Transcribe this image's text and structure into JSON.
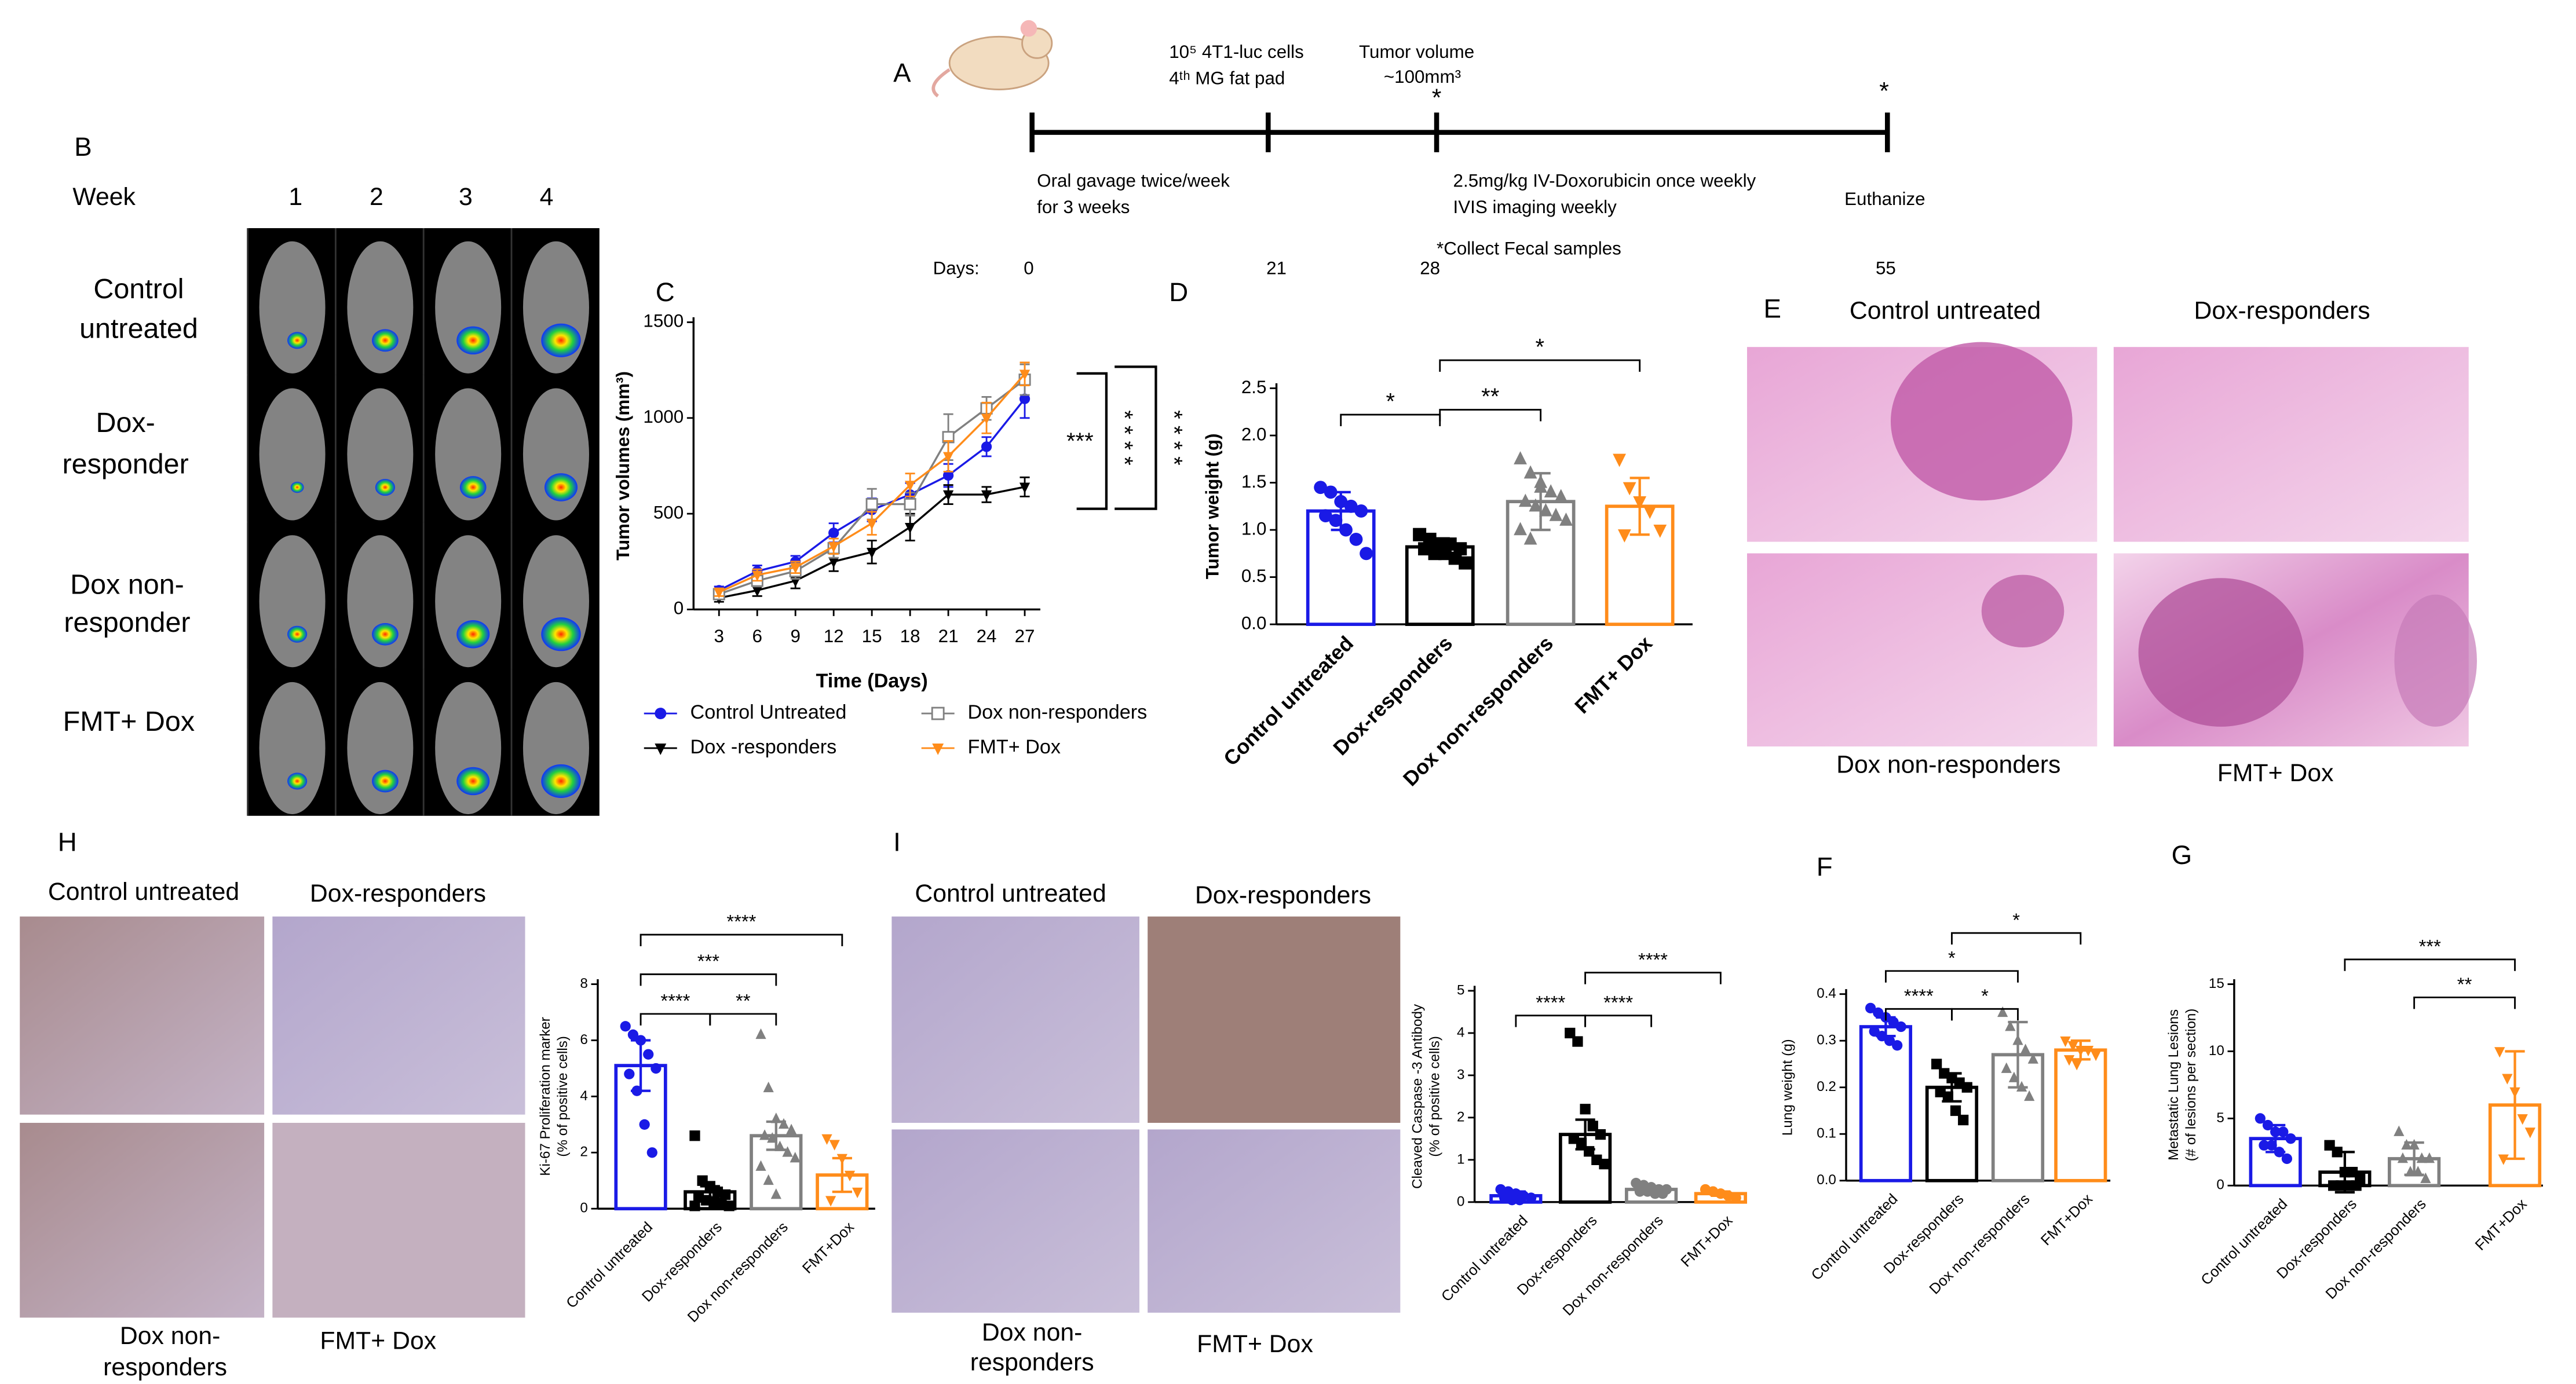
{
  "panel_labels": [
    "A",
    "B",
    "C",
    "D",
    "E",
    "F",
    "G",
    "H",
    "I"
  ],
  "timeline": {
    "cells": [
      "10⁵ 4T1-luc cells",
      "4ᵗʰ MG fat pad"
    ],
    "tumor": [
      "Tumor volume",
      "~100mm³"
    ],
    "gavage": [
      "Oral gavage twice/week",
      "for 3 weeks"
    ],
    "dox": [
      "2.5mg/kg IV-Doxorubicin once weekly",
      "IVIS imaging weekly"
    ],
    "euthanize": "Euthanize",
    "fecal": "*Collect Fecal samples",
    "star": "*",
    "days_label": "Days:",
    "days": [
      "0",
      "21",
      "28",
      "55"
    ]
  },
  "imaging": {
    "week_label": "Week",
    "weeks": [
      "1",
      "2",
      "3",
      "4"
    ],
    "rows": [
      [
        "Control",
        "untreated"
      ],
      [
        "Dox-",
        "responder"
      ],
      [
        "Dox non-",
        "responder"
      ],
      [
        "FMT+ Dox"
      ]
    ]
  },
  "histology_E": {
    "labels": [
      "Control untreated",
      "Dox-responders",
      "Dox non-responders",
      "FMT+ Dox"
    ]
  },
  "histology_H": {
    "labels": [
      "Control untreated",
      "Dox-responders",
      [
        "Dox non-",
        "responders"
      ],
      "FMT+ Dox"
    ]
  },
  "histology_I": {
    "labels": [
      "Control untreated",
      "Dox-responders",
      [
        "Dox non-",
        "responders"
      ],
      "FMT+ Dox"
    ]
  },
  "chart_data": [
    {
      "type": "line",
      "xlabel": "Time (Days)",
      "ylabel": [
        "Tumor volumes (mm³)"
      ],
      "x": [
        3,
        6,
        9,
        12,
        15,
        18,
        21,
        24,
        27
      ],
      "xlim": [
        1,
        29
      ],
      "xticks": [
        3,
        6,
        9,
        12,
        15,
        18,
        21,
        24,
        27
      ],
      "ylim": [
        0,
        1500
      ],
      "yticks": [
        0,
        500,
        1000,
        1500
      ],
      "legend": "bottom",
      "series": [
        {
          "name": "Control Untreated",
          "color": "#1a1ae6",
          "marker": "circle",
          "values": [
            100,
            200,
            250,
            400,
            520,
            600,
            700,
            850,
            1100
          ],
          "errors": [
            20,
            30,
            30,
            50,
            60,
            60,
            60,
            50,
            100
          ]
        },
        {
          "name": "Dox -responders",
          "color": "#000000",
          "marker": "triangle-down",
          "values": [
            60,
            100,
            150,
            250,
            300,
            430,
            600,
            600,
            640
          ],
          "errors": [
            20,
            30,
            40,
            50,
            60,
            70,
            50,
            40,
            50
          ]
        },
        {
          "name": "Dox non-responders",
          "color": "#808080",
          "marker": "square-open",
          "values": [
            80,
            150,
            200,
            320,
            550,
            550,
            900,
            1050,
            1200
          ],
          "errors": [
            20,
            30,
            40,
            50,
            80,
            60,
            120,
            60,
            80
          ]
        },
        {
          "name": "FMT+ Dox",
          "color": "#ff8c1a",
          "marker": "triangle-down",
          "values": [
            90,
            180,
            220,
            330,
            450,
            650,
            800,
            1000,
            1230
          ],
          "errors": [
            20,
            30,
            30,
            40,
            60,
            60,
            80,
            80,
            60
          ]
        }
      ],
      "annotations": [
        {
          "text": "***"
        },
        {
          "text": "* * * *"
        },
        {
          "text": "* * * *"
        }
      ]
    },
    {
      "type": "bar",
      "ylabel": [
        "Tumor weight (g)"
      ],
      "categories": [
        "Control untreated",
        "Dox-responders",
        "Dox non-responders",
        "FMT+ Dox"
      ],
      "values": [
        1.2,
        0.82,
        1.3,
        1.25
      ],
      "errors": [
        0.2,
        0.09,
        0.3,
        0.3
      ],
      "points": [
        [
          1.45,
          1.4,
          1.3,
          1.25,
          1.2,
          1.15,
          1.1,
          1.0,
          0.9,
          0.75
        ],
        [
          0.95,
          0.9,
          0.85,
          0.85,
          0.8,
          0.8,
          0.75,
          0.75,
          0.7,
          0.65,
          0.95
        ],
        [
          1.75,
          1.6,
          1.5,
          1.4,
          1.35,
          1.3,
          1.25,
          1.2,
          1.15,
          1.1,
          1.0,
          0.9,
          1.45
        ],
        [
          1.75,
          1.45,
          1.3,
          1.2,
          1.0,
          0.95
        ]
      ],
      "colors": [
        "#1a1ae6",
        "#000000",
        "#808080",
        "#ff8c1a"
      ],
      "markers": [
        "circle",
        "square",
        "triangle",
        "triangle-down"
      ],
      "ylim": [
        0,
        2.5
      ],
      "yticks": [
        {
          "value": 0,
          "label": "0.0"
        },
        0.5,
        {
          "value": 1,
          "label": "1.0"
        },
        1.5,
        {
          "value": 2,
          "label": "2.0"
        },
        2.5
      ],
      "annotations": [
        {
          "text": "*",
          "from": 0,
          "to": 1
        },
        {
          "text": "**",
          "from": 1,
          "to": 2
        },
        {
          "text": "*",
          "from": 1,
          "to": 3
        }
      ]
    },
    {
      "type": "bar",
      "ylabel": [
        "Ki-67 Proliferation marker",
        "(% of positive cells)"
      ],
      "categories": [
        "Control untreated",
        "Dox-responders",
        "Dox non-responders",
        "FMT+Dox"
      ],
      "values": [
        5.1,
        0.6,
        2.6,
        1.2
      ],
      "errors": [
        0.9,
        0.2,
        0.5,
        0.6
      ],
      "points": [
        [
          6.5,
          6.2,
          6.0,
          5.5,
          5.0,
          4.8,
          4.2,
          3.0,
          2.0
        ],
        [
          2.6,
          1.0,
          0.8,
          0.6,
          0.5,
          0.4,
          0.3,
          0.2,
          0.2,
          0.1,
          0.1
        ],
        [
          6.2,
          4.3,
          3.2,
          3.0,
          2.8,
          2.6,
          2.5,
          2.2,
          2.0,
          1.8,
          1.5,
          1.0,
          0.5
        ],
        [
          2.5,
          2.3,
          1.8,
          1.2,
          0.6,
          0.3
        ]
      ],
      "colors": [
        "#1a1ae6",
        "#000000",
        "#808080",
        "#ff8c1a"
      ],
      "markers": [
        "circle",
        "square",
        "triangle",
        "triangle-down"
      ],
      "ylim": [
        0,
        8
      ],
      "yticks": [
        0,
        2,
        4,
        6,
        8
      ],
      "annotations": [
        {
          "text": "****",
          "from": 0,
          "to": 1
        },
        {
          "text": "***",
          "from": 0,
          "to": 2
        },
        {
          "text": "****",
          "from": 0,
          "to": 3
        },
        {
          "text": "**",
          "from": 1,
          "to": 2
        }
      ]
    },
    {
      "type": "bar",
      "ylabel": [
        "Cleaved Caspase -3 Antibody",
        "(% of positive cells)"
      ],
      "categories": [
        "Control untreated",
        "Dox-responders",
        "Dox non-responders",
        "FMT+Dox"
      ],
      "values": [
        0.15,
        1.6,
        0.3,
        0.2
      ],
      "errors": [
        0.1,
        0.35,
        0.05,
        0.05
      ],
      "points": [
        [
          0.3,
          0.25,
          0.2,
          0.15,
          0.1,
          0.1,
          0.05,
          0.05
        ],
        [
          4.0,
          3.8,
          2.2,
          1.8,
          1.6,
          1.5,
          1.4,
          1.2,
          1.0,
          0.9
        ],
        [
          0.45,
          0.4,
          0.35,
          0.3,
          0.3,
          0.25,
          0.25,
          0.2,
          0.2
        ],
        [
          0.3,
          0.25,
          0.2,
          0.15,
          0.1
        ]
      ],
      "colors": [
        "#1a1ae6",
        "#000000",
        "#808080",
        "#ff8c1a"
      ],
      "markers": [
        "circle",
        "square",
        "circle",
        "circle"
      ],
      "ylim": [
        0,
        5
      ],
      "yticks": [
        0,
        1,
        2,
        3,
        4,
        5
      ],
      "annotations": [
        {
          "text": "****",
          "from": 0,
          "to": 1
        },
        {
          "text": "****",
          "from": 1,
          "to": 2
        },
        {
          "text": "****",
          "from": 1,
          "to": 3
        }
      ]
    },
    {
      "type": "bar",
      "ylabel": [
        "Lung weight (g)"
      ],
      "categories": [
        "Control untreated",
        "Dox-responders",
        "Dox non-responders",
        "FMT+Dox"
      ],
      "values": [
        0.33,
        0.2,
        0.27,
        0.28
      ],
      "errors": [
        0.02,
        0.03,
        0.07,
        0.02
      ],
      "points": [
        [
          0.37,
          0.36,
          0.35,
          0.34,
          0.33,
          0.32,
          0.31,
          0.3,
          0.29
        ],
        [
          0.25,
          0.23,
          0.22,
          0.21,
          0.2,
          0.19,
          0.18,
          0.15,
          0.13
        ],
        [
          0.36,
          0.33,
          0.3,
          0.28,
          0.26,
          0.24,
          0.22,
          0.2,
          0.18
        ],
        [
          0.3,
          0.29,
          0.28,
          0.28,
          0.27,
          0.26,
          0.25
        ]
      ],
      "colors": [
        "#1a1ae6",
        "#000000",
        "#808080",
        "#ff8c1a"
      ],
      "markers": [
        "circle",
        "square",
        "triangle",
        "triangle-down"
      ],
      "ylim": [
        0,
        0.4
      ],
      "yticks": [
        {
          "value": 0,
          "label": "0.0"
        },
        0.1,
        0.2,
        0.3,
        0.4
      ],
      "annotations": [
        {
          "text": "****",
          "from": 0,
          "to": 1
        },
        {
          "text": "*",
          "from": 1,
          "to": 2
        },
        {
          "text": "*",
          "from": 0,
          "to": 2
        },
        {
          "text": "*",
          "from": 1,
          "to": 3
        }
      ]
    },
    {
      "type": "bar",
      "ylabel": [
        "Metastatic Lung Lesions",
        "(# of lesions per section)"
      ],
      "categories": [
        "Control untreated",
        "Dox-responders",
        "Dox non-responders",
        "FMT+Dox"
      ],
      "values": [
        3.5,
        1,
        2,
        6
      ],
      "errors": [
        1,
        1.5,
        1.2,
        4
      ],
      "points": [
        [
          5,
          4.5,
          4,
          4,
          3.5,
          3,
          3,
          2.5,
          2
        ],
        [
          3,
          2.5,
          1,
          1,
          0.5,
          0,
          0,
          0,
          0
        ],
        [
          4,
          3,
          3,
          2,
          2,
          2,
          1,
          1,
          0.5
        ],
        [
          10,
          8,
          7,
          5,
          4,
          2
        ]
      ],
      "colors": [
        "#1a1ae6",
        "#000000",
        "#808080",
        "#ff8c1a"
      ],
      "markers": [
        "circle",
        "square",
        "triangle",
        "triangle-down"
      ],
      "ylim": [
        0,
        15
      ],
      "yticks": [
        0,
        5,
        10,
        15
      ],
      "annotations": [
        {
          "text": "***",
          "from": 1,
          "to": 3
        },
        {
          "text": "**",
          "from": 2,
          "to": 3
        }
      ]
    }
  ]
}
